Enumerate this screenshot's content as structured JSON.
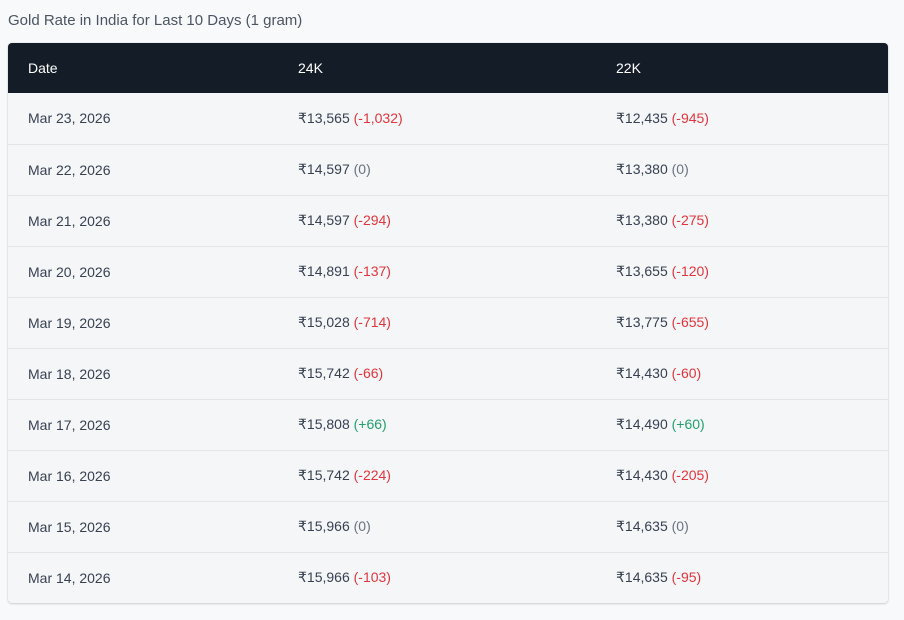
{
  "caption": "Gold Rate in India for Last 10 Days (1 gram)",
  "table": {
    "headers": [
      "Date",
      "24K",
      "22K"
    ],
    "rows": [
      {
        "date": "Mar 23, 2026",
        "k24": "₹13,565",
        "k24_change": "(-1,032)",
        "k24_dir": "down",
        "k22": "₹12,435",
        "k22_change": "(-945)",
        "k22_dir": "down"
      },
      {
        "date": "Mar 22, 2026",
        "k24": "₹14,597",
        "k24_change": "(0)",
        "k24_dir": "zero",
        "k22": "₹13,380",
        "k22_change": "(0)",
        "k22_dir": "zero"
      },
      {
        "date": "Mar 21, 2026",
        "k24": "₹14,597",
        "k24_change": "(-294)",
        "k24_dir": "down",
        "k22": "₹13,380",
        "k22_change": "(-275)",
        "k22_dir": "down"
      },
      {
        "date": "Mar 20, 2026",
        "k24": "₹14,891",
        "k24_change": "(-137)",
        "k24_dir": "down",
        "k22": "₹13,655",
        "k22_change": "(-120)",
        "k22_dir": "down"
      },
      {
        "date": "Mar 19, 2026",
        "k24": "₹15,028",
        "k24_change": "(-714)",
        "k24_dir": "down",
        "k22": "₹13,775",
        "k22_change": "(-655)",
        "k22_dir": "down"
      },
      {
        "date": "Mar 18, 2026",
        "k24": "₹15,742",
        "k24_change": "(-66)",
        "k24_dir": "down",
        "k22": "₹14,430",
        "k22_change": "(-60)",
        "k22_dir": "down"
      },
      {
        "date": "Mar 17, 2026",
        "k24": "₹15,808",
        "k24_change": "(+66)",
        "k24_dir": "up",
        "k22": "₹14,490",
        "k22_change": "(+60)",
        "k22_dir": "up"
      },
      {
        "date": "Mar 16, 2026",
        "k24": "₹15,742",
        "k24_change": "(-224)",
        "k24_dir": "down",
        "k22": "₹14,430",
        "k22_change": "(-205)",
        "k22_dir": "down"
      },
      {
        "date": "Mar 15, 2026",
        "k24": "₹15,966",
        "k24_change": "(0)",
        "k24_dir": "zero",
        "k22": "₹14,635",
        "k22_change": "(0)",
        "k22_dir": "zero"
      },
      {
        "date": "Mar 14, 2026",
        "k24": "₹15,966",
        "k24_change": "(-103)",
        "k24_dir": "down",
        "k22": "₹14,635",
        "k22_change": "(-95)",
        "k22_dir": "down"
      }
    ]
  },
  "colors": {
    "header_bg": "#141c27",
    "down": "#e0353d",
    "up": "#22a06b",
    "zero": "#6b7280"
  }
}
